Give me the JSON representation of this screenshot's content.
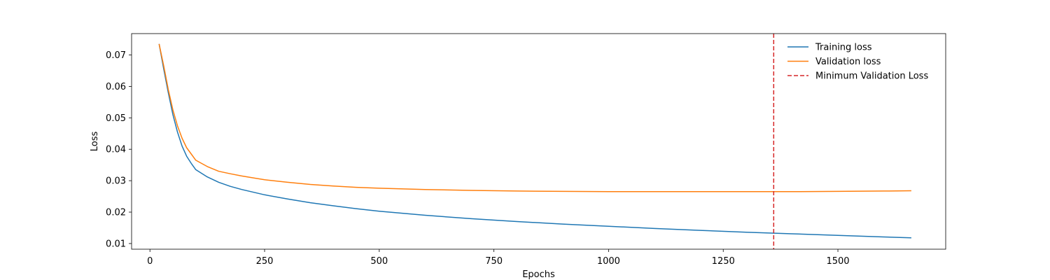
{
  "chart_data": {
    "type": "line",
    "title": "",
    "xlabel": "Epochs",
    "ylabel": "Loss",
    "xlim": [
      -40,
      1735
    ],
    "ylim": [
      0.0082,
      0.0768
    ],
    "xticks": [
      0,
      250,
      500,
      750,
      1000,
      1250,
      1500
    ],
    "xtick_labels": [
      "0",
      "250",
      "500",
      "750",
      "1000",
      "1250",
      "1500"
    ],
    "yticks": [
      0.01,
      0.02,
      0.03,
      0.04,
      0.05,
      0.06,
      0.07
    ],
    "ytick_labels": [
      "0.01",
      "0.02",
      "0.03",
      "0.04",
      "0.05",
      "0.06",
      "0.07"
    ],
    "grid": false,
    "legend_position": "top-right",
    "series": [
      {
        "name": "Training loss",
        "color": "#1f77b4",
        "style": "solid",
        "x": [
          20,
          30,
          40,
          50,
          60,
          70,
          80,
          90,
          100,
          125,
          150,
          175,
          200,
          250,
          300,
          350,
          400,
          450,
          500,
          600,
          700,
          800,
          900,
          1000,
          1100,
          1200,
          1300,
          1400,
          1500,
          1600,
          1660
        ],
        "y": [
          0.0735,
          0.0655,
          0.058,
          0.051,
          0.0455,
          0.041,
          0.0378,
          0.0355,
          0.0335,
          0.0312,
          0.0295,
          0.0282,
          0.0272,
          0.0255,
          0.0242,
          0.023,
          0.022,
          0.0211,
          0.0203,
          0.019,
          0.0179,
          0.017,
          0.0162,
          0.0155,
          0.0148,
          0.0142,
          0.0136,
          0.0131,
          0.0126,
          0.0121,
          0.0118
        ]
      },
      {
        "name": "Validation loss",
        "color": "#ff7f0e",
        "style": "solid",
        "x": [
          20,
          30,
          40,
          50,
          60,
          70,
          80,
          90,
          100,
          125,
          150,
          175,
          200,
          250,
          300,
          350,
          400,
          450,
          500,
          600,
          700,
          800,
          900,
          1000,
          1100,
          1200,
          1300,
          1400,
          1500,
          1600,
          1660
        ],
        "y": [
          0.0735,
          0.0665,
          0.059,
          0.0525,
          0.0475,
          0.0435,
          0.0405,
          0.0385,
          0.0365,
          0.0345,
          0.033,
          0.0322,
          0.0315,
          0.0303,
          0.0295,
          0.0288,
          0.0283,
          0.0279,
          0.0276,
          0.0272,
          0.0269,
          0.0267,
          0.0266,
          0.0265,
          0.0265,
          0.0265,
          0.0265,
          0.0265,
          0.0266,
          0.0267,
          0.0268
        ]
      }
    ],
    "reference_lines": [
      {
        "name": "Minimum Validation Loss",
        "orientation": "vertical",
        "x": 1360,
        "color": "#d62728",
        "style": "dashed"
      }
    ]
  }
}
